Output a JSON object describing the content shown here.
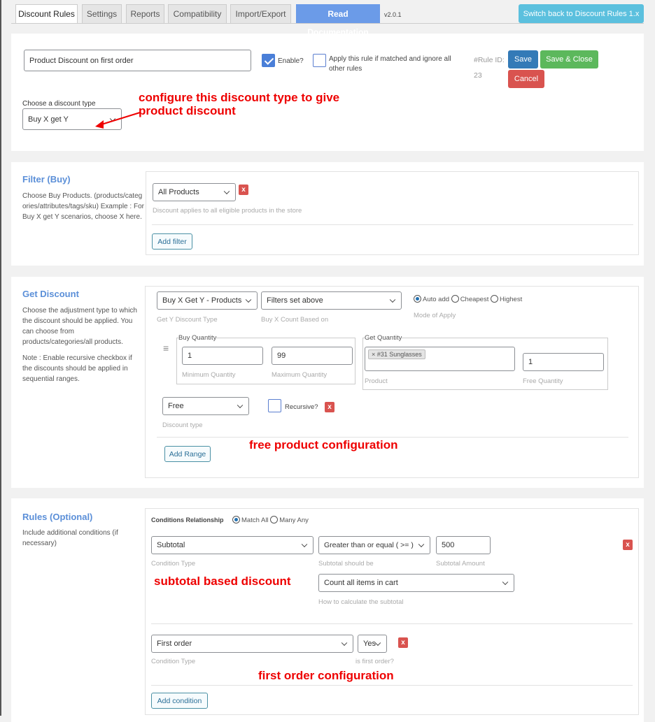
{
  "tabs": [
    {
      "label": "Discount Rules",
      "active": true
    },
    {
      "label": "Settings"
    },
    {
      "label": "Reports"
    },
    {
      "label": "Compatibility"
    },
    {
      "label": "Import/Export"
    },
    {
      "label": "Read Documentation"
    }
  ],
  "version": "v2.0.1",
  "switch_back_label": "Switch back to Discount Rules 1.x",
  "header": {
    "rule_name": "Product Discount on first order",
    "enable_label": "Enable?",
    "enable_checked": true,
    "apply_exclusive_label": "Apply this rule if matched and ignore all other rules",
    "apply_exclusive_checked": false,
    "rule_id_label": "#Rule ID:",
    "rule_id": "23",
    "save_label": "Save",
    "save_close_label": "Save & Close",
    "cancel_label": "Cancel",
    "discount_type_label": "Choose a discount type",
    "discount_type_value": "Buy X get Y"
  },
  "annotations": {
    "discount_type": "configure this discount type to give product discount",
    "free_product": "free product configuration",
    "subtotal": "subtotal based discount",
    "first_order": "first order configuration"
  },
  "filter": {
    "title": "Filter (Buy)",
    "description": "Choose Buy Products. (products/categories/attributes/tags/sku) Example : For Buy X get Y scenarios, choose X here.",
    "select_value": "All Products",
    "hint": "Discount applies to all eligible products in the store",
    "add_filter_label": "Add filter",
    "remove_label": "x"
  },
  "get_discount": {
    "title": "Get Discount",
    "description": "Choose the adjustment type to which the discount should be applied. You can choose from products/categories/all products.",
    "note": "Note : Enable recursive checkbox if the discounts should be applied in sequential ranges.",
    "discount_type_value": "Buy X Get Y - Products",
    "discount_type_hint": "Get Y Discount Type",
    "count_based_value": "Filters set above",
    "count_based_hint": "Buy X Count Based on",
    "mode_options": [
      {
        "label": "Auto add",
        "selected": true
      },
      {
        "label": "Cheapest",
        "selected": false
      },
      {
        "label": "Highest",
        "selected": false
      }
    ],
    "mode_hint": "Mode of Apply",
    "buy_quantity_legend": "Buy Quantity",
    "min_qty": "1",
    "min_qty_hint": "Minimum Quantity",
    "max_qty": "99",
    "max_qty_hint": "Maximum Quantity",
    "get_quantity_legend": "Get Quantity",
    "product_tag": "× #31 Sunglasses",
    "product_hint": "Product",
    "free_qty": "1",
    "free_qty_hint": "Free Quantity",
    "type_value": "Free",
    "type_hint": "Discount type",
    "recursive_label": "Recursive?",
    "recursive_checked": false,
    "add_range_label": "Add Range"
  },
  "rules": {
    "title": "Rules (Optional)",
    "description": "Include additional conditions (if necessary)",
    "relationship_label": "Conditions Relationship",
    "relationship_options": [
      {
        "label": "Match All",
        "selected": true
      },
      {
        "label": "Many Any",
        "selected": false
      }
    ],
    "condition1": {
      "type": "Subtotal",
      "type_hint": "Condition Type",
      "operator": "Greater than or equal ( >= )",
      "operator_hint": "Subtotal should be",
      "amount": "500",
      "amount_hint": "Subtotal Amount",
      "calc": "Count all items in cart",
      "calc_hint": "How to calculate the subtotal"
    },
    "condition2": {
      "type": "First order",
      "type_hint": "Condition Type",
      "value": "Yes",
      "value_hint": "is first order?"
    },
    "add_condition_label": "Add condition"
  },
  "colors": {
    "accent": "#5b8fd8",
    "save": "#337ab7",
    "save_close": "#5cb85c",
    "cancel": "#d9534f",
    "switch_back": "#5bc0de",
    "annotation": "#ee0000"
  }
}
